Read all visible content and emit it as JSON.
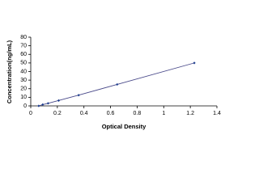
{
  "chart_data": {
    "type": "scatter",
    "x_label": "Optical Density",
    "y_label": "Concentration(ng/mL)",
    "x": [
      0.06,
      0.09,
      0.13,
      0.21,
      0.36,
      0.65,
      1.23
    ],
    "values": [
      0,
      1.5,
      3,
      6.25,
      12.5,
      25,
      50
    ],
    "color": "#1f3f8f",
    "line_color": "#4a4a8a",
    "xlim": [
      0,
      1.4
    ],
    "xticks": [
      0,
      0.2,
      0.4,
      0.6,
      0.8,
      1,
      1.2,
      1.4
    ],
    "ylim": [
      0,
      80
    ],
    "yticks": [
      0,
      10,
      20,
      30,
      40,
      50,
      60,
      70,
      80
    ],
    "grid": false
  }
}
